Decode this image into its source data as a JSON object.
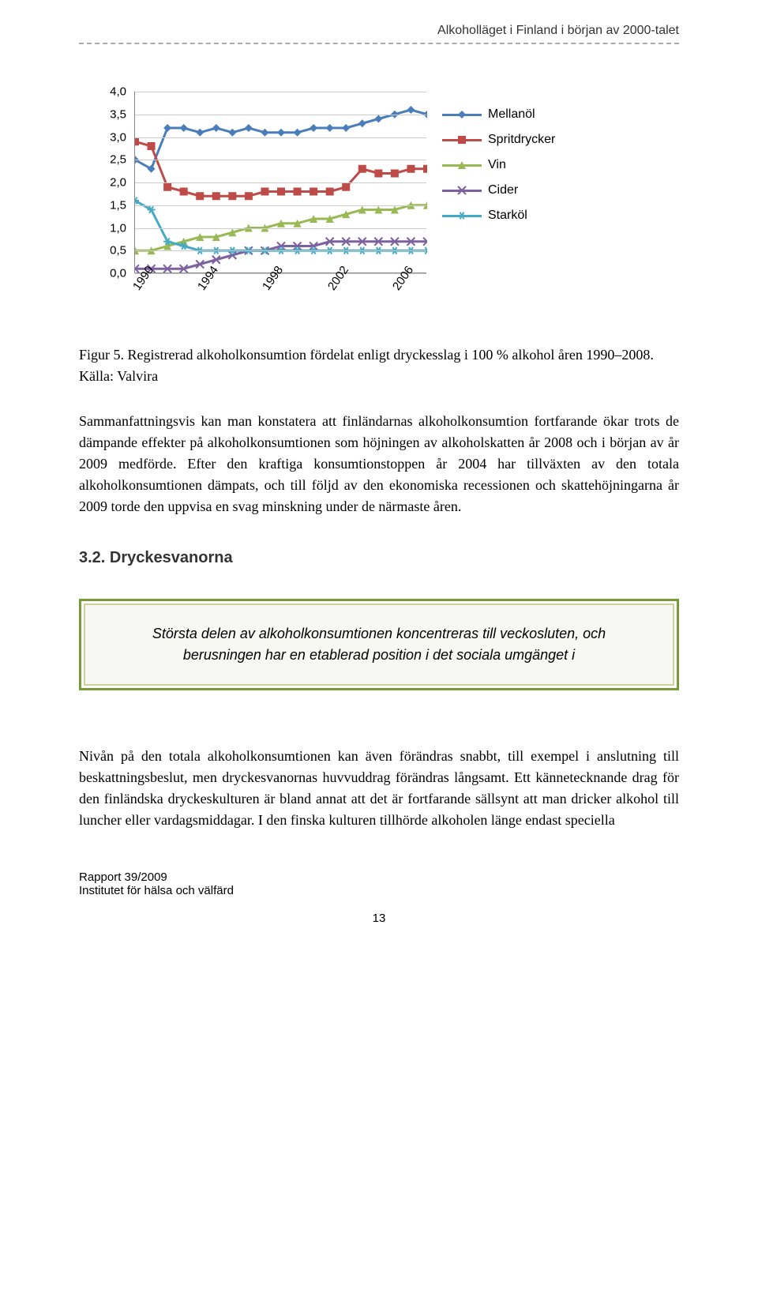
{
  "header": {
    "text": "Alkoholläget i Finland i början av 2000-talet"
  },
  "chart": {
    "type": "line",
    "ylim": [
      0.0,
      4.0
    ],
    "ytick_step": 0.5,
    "yticks": [
      "4,0",
      "3,5",
      "3,0",
      "2,5",
      "2,0",
      "1,5",
      "1,0",
      "0,5",
      "0,0"
    ],
    "years": [
      "1990",
      "1991",
      "1992",
      "1993",
      "1994",
      "1995",
      "1996",
      "1997",
      "1998",
      "1999",
      "2000",
      "2001",
      "2002",
      "2003",
      "2004",
      "2005",
      "2006",
      "2007",
      "2008"
    ],
    "xlabels_visible": [
      "1990",
      "1994",
      "1998",
      "2002",
      "2006"
    ],
    "series": [
      {
        "key": "mellanol",
        "label": "Mellanöl",
        "color": "#4a7ebb",
        "marker": "diamond",
        "values": [
          2.5,
          2.3,
          3.2,
          3.2,
          3.1,
          3.2,
          3.1,
          3.2,
          3.1,
          3.1,
          3.1,
          3.2,
          3.2,
          3.2,
          3.3,
          3.4,
          3.5,
          3.6,
          3.5
        ]
      },
      {
        "key": "spritdrycker",
        "label": "Spritdrycker",
        "color": "#be4b48",
        "marker": "square",
        "values": [
          2.9,
          2.8,
          1.9,
          1.8,
          1.7,
          1.7,
          1.7,
          1.7,
          1.8,
          1.8,
          1.8,
          1.8,
          1.8,
          1.9,
          2.3,
          2.2,
          2.2,
          2.3,
          2.3
        ]
      },
      {
        "key": "vin",
        "label": "Vin",
        "color": "#98b954",
        "marker": "triangle",
        "values": [
          0.5,
          0.5,
          0.6,
          0.7,
          0.8,
          0.8,
          0.9,
          1.0,
          1.0,
          1.1,
          1.1,
          1.2,
          1.2,
          1.3,
          1.4,
          1.4,
          1.4,
          1.5,
          1.5
        ]
      },
      {
        "key": "cider",
        "label": "Cider",
        "color": "#7d60a0",
        "marker": "x",
        "values": [
          0.1,
          0.1,
          0.1,
          0.1,
          0.2,
          0.3,
          0.4,
          0.5,
          0.5,
          0.6,
          0.6,
          0.6,
          0.7,
          0.7,
          0.7,
          0.7,
          0.7,
          0.7,
          0.7
        ]
      },
      {
        "key": "starkol",
        "label": "Starköl",
        "color": "#46aac5",
        "marker": "star",
        "values": [
          1.6,
          1.4,
          0.7,
          0.6,
          0.5,
          0.5,
          0.5,
          0.5,
          0.5,
          0.5,
          0.5,
          0.5,
          0.5,
          0.5,
          0.5,
          0.5,
          0.5,
          0.5,
          0.5
        ]
      }
    ],
    "background_color": "#ffffff",
    "grid_color": "#cccccc",
    "axis_fontsize": 15,
    "legend_fontsize": 16,
    "marker_size": 10,
    "line_width": 3
  },
  "caption": {
    "line1": "Figur 5. Registrerad alkoholkonsumtion fördelat enligt dryckesslag i 100 % alkohol åren 1990–2008.",
    "line2": "Källa: Valvira"
  },
  "para1": "Sammanfattningsvis kan man konstatera att finländarnas alkoholkonsumtion fortfarande ökar trots de dämpande effekter på alkoholkonsumtionen som höjningen av alkoholskatten år 2008 och i början av år 2009 medförde. Efter den kraftiga konsumtionstoppen år 2004 har tillväxten av den totala alkoholkonsumtionen dämpats, och till följd av den ekonomiska recessionen och skattehöjningarna år 2009 torde den uppvisa en svag minskning under de närmaste åren.",
  "section": {
    "number": "3.2.",
    "title": "Dryckesvanorna"
  },
  "callout": "Största delen av alkoholkonsumtionen koncentreras till veckosluten, och berusningen har en etablerad position i det sociala umgänget i",
  "para2": "Nivån på den totala alkoholkonsumtionen kan även förändras snabbt, till exempel i anslutning till beskattningsbeslut, men dryckesvanornas huvvuddrag förändras långsamt. Ett kännetecknande drag för den finländska dryckeskulturen är bland annat att det är fortfarande sällsynt att man dricker alkohol till luncher eller vardagsmiddagar. I den finska kulturen tillhörde alkoholen länge endast speciella",
  "footer": {
    "line1": "Rapport 39/2009",
    "line2": "Institutet för hälsa och välfärd"
  },
  "page_number": "13"
}
